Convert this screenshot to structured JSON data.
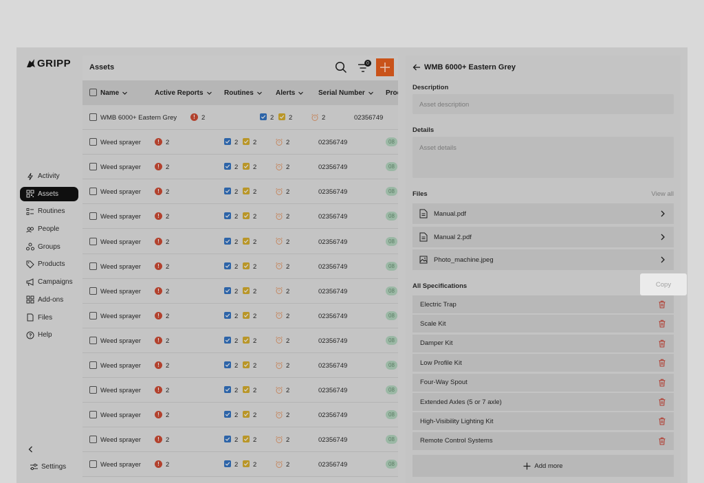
{
  "sidebar": {
    "logo_text": "GRIPP",
    "items": [
      {
        "label": "Activity",
        "icon": "bolt-icon",
        "active": false
      },
      {
        "label": "Assets",
        "icon": "qr-code-icon",
        "active": true
      },
      {
        "label": "Routines",
        "icon": "checklist-icon",
        "active": false
      },
      {
        "label": "People",
        "icon": "people-icon",
        "active": false
      },
      {
        "label": "Groups",
        "icon": "groups-icon",
        "active": false
      },
      {
        "label": "Products",
        "icon": "tag-icon",
        "active": false
      },
      {
        "label": "Campaigns",
        "icon": "megaphone-icon",
        "active": false
      },
      {
        "label": "Add-ons",
        "icon": "grid-icon",
        "active": false
      },
      {
        "label": "Files",
        "icon": "file-icon",
        "active": false
      },
      {
        "label": "Help",
        "icon": "help-icon",
        "active": false
      }
    ],
    "settings_label": "Settings"
  },
  "assets": {
    "title": "Assets",
    "filter_count": "0",
    "columns": [
      "Name",
      "Active Reports",
      "Routines",
      "Alerts",
      "Serial Number",
      "Prod"
    ],
    "rows": [
      {
        "name": "WMB 6000+ Eastern Grey",
        "reports": "2",
        "routines_done": "2",
        "routines_pending": "2",
        "alerts": "2",
        "serial": "02356749",
        "prod": ""
      },
      {
        "name": "Weed sprayer",
        "reports": "2",
        "routines_done": "2",
        "routines_pending": "2",
        "alerts": "2",
        "serial": "02356749",
        "prod": "08"
      },
      {
        "name": "Weed sprayer",
        "reports": "2",
        "routines_done": "2",
        "routines_pending": "2",
        "alerts": "2",
        "serial": "02356749",
        "prod": "08"
      },
      {
        "name": "Weed sprayer",
        "reports": "2",
        "routines_done": "2",
        "routines_pending": "2",
        "alerts": "2",
        "serial": "02356749",
        "prod": "08"
      },
      {
        "name": "Weed sprayer",
        "reports": "2",
        "routines_done": "2",
        "routines_pending": "2",
        "alerts": "2",
        "serial": "02356749",
        "prod": "08"
      },
      {
        "name": "Weed sprayer",
        "reports": "2",
        "routines_done": "2",
        "routines_pending": "2",
        "alerts": "2",
        "serial": "02356749",
        "prod": "08"
      },
      {
        "name": "Weed sprayer",
        "reports": "2",
        "routines_done": "2",
        "routines_pending": "2",
        "alerts": "2",
        "serial": "02356749",
        "prod": "08"
      },
      {
        "name": "Weed sprayer",
        "reports": "2",
        "routines_done": "2",
        "routines_pending": "2",
        "alerts": "2",
        "serial": "02356749",
        "prod": "08"
      },
      {
        "name": "Weed sprayer",
        "reports": "2",
        "routines_done": "2",
        "routines_pending": "2",
        "alerts": "2",
        "serial": "02356749",
        "prod": "08"
      },
      {
        "name": "Weed sprayer",
        "reports": "2",
        "routines_done": "2",
        "routines_pending": "2",
        "alerts": "2",
        "serial": "02356749",
        "prod": "08"
      },
      {
        "name": "Weed sprayer",
        "reports": "2",
        "routines_done": "2",
        "routines_pending": "2",
        "alerts": "2",
        "serial": "02356749",
        "prod": "08"
      },
      {
        "name": "Weed sprayer",
        "reports": "2",
        "routines_done": "2",
        "routines_pending": "2",
        "alerts": "2",
        "serial": "02356749",
        "prod": "08"
      },
      {
        "name": "Weed sprayer",
        "reports": "2",
        "routines_done": "2",
        "routines_pending": "2",
        "alerts": "2",
        "serial": "02356749",
        "prod": "08"
      },
      {
        "name": "Weed sprayer",
        "reports": "2",
        "routines_done": "2",
        "routines_pending": "2",
        "alerts": "2",
        "serial": "02356749",
        "prod": "08"
      },
      {
        "name": "Weed sprayer",
        "reports": "2",
        "routines_done": "2",
        "routines_pending": "2",
        "alerts": "2",
        "serial": "02356749",
        "prod": "08"
      }
    ]
  },
  "detail": {
    "title": "WMB 6000+ Eastern Grey",
    "description_label": "Description",
    "description_placeholder": "Asset description",
    "details_label": "Details",
    "details_placeholder": "Asset details",
    "files_label": "Files",
    "view_all_label": "View all",
    "files": [
      {
        "name": "Manual.pdf",
        "icon": "document-icon"
      },
      {
        "name": "Manual 2.pdf",
        "icon": "document-icon"
      },
      {
        "name": "Photo_machine.jpeg",
        "icon": "image-icon"
      }
    ],
    "specs_label": "All Specifications",
    "copy_label": "Copy",
    "specifications": [
      "Electric Trap",
      "Scale Kit",
      "Damper Kit",
      "Low Profile Kit",
      "Four-Way Spout",
      "Extended Axles (5 or 7 axle)",
      "High-Visibility Lighting Kit",
      "Remote Control Systems"
    ],
    "add_more_label": "Add more"
  },
  "colors": {
    "accent": "#c9531a",
    "overlay_bg": "#d9d9d9",
    "report_red": "#b2412d",
    "routine_blue": "#2d64a8",
    "routine_yellow": "#b99628",
    "trash_red": "#b03a2e"
  }
}
